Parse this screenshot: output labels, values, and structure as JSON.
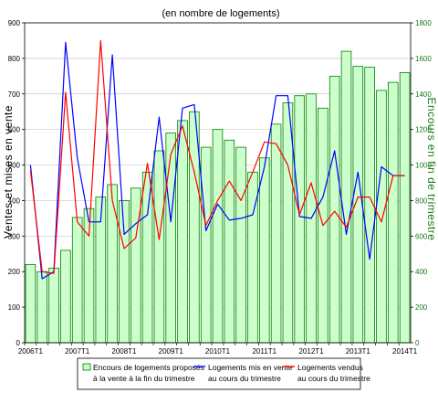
{
  "chart_data": {
    "type": "bar+line",
    "title": "(en nombre de logements)",
    "ylabel_left": "Ventes et mises en vente",
    "ylabel_right": "Encours en fin de trimestre",
    "ylim_left": [
      0,
      900
    ],
    "ylim_right": [
      0,
      1800
    ],
    "yticks_left": [
      0,
      100,
      200,
      300,
      400,
      500,
      600,
      700,
      800,
      900
    ],
    "yticks_right": [
      0,
      200,
      400,
      600,
      800,
      1000,
      1200,
      1400,
      1600,
      1800
    ],
    "x_tick_labels": [
      "2006T1",
      "2007T1",
      "2008T1",
      "2009T1",
      "2010T1",
      "2011T1",
      "2012T1",
      "2013T1",
      "2014T1"
    ],
    "categories": [
      "2006T1",
      "2006T2",
      "2006T3",
      "2006T4",
      "2007T1",
      "2007T2",
      "2007T3",
      "2007T4",
      "2008T1",
      "2008T2",
      "2008T3",
      "2008T4",
      "2009T1",
      "2009T2",
      "2009T3",
      "2009T4",
      "2010T1",
      "2010T2",
      "2010T3",
      "2010T4",
      "2011T1",
      "2011T2",
      "2011T3",
      "2011T4",
      "2012T1",
      "2012T2",
      "2012T3",
      "2012T4",
      "2013T1",
      "2013T2",
      "2013T3",
      "2013T4",
      "2014T1"
    ],
    "grid": true,
    "legend_position": "bottom",
    "series": [
      {
        "name": "Encours de logements proposés à la vente à la fin du trimestre",
        "kind": "bar",
        "axis": "right",
        "color": "#ccffcc",
        "values": [
          440,
          400,
          420,
          520,
          705,
          755,
          820,
          890,
          800,
          870,
          960,
          1080,
          1180,
          1250,
          1300,
          1100,
          1200,
          1140,
          1100,
          960,
          1040,
          1230,
          1350,
          1390,
          1400,
          1320,
          1500,
          1640,
          1555,
          1550,
          1420,
          1465,
          1520
        ]
      },
      {
        "name": "Logements mis en vente au cours du trimestre",
        "kind": "line",
        "axis": "left",
        "color": "#0000ff",
        "values": [
          500,
          180,
          200,
          845,
          520,
          340,
          340,
          810,
          305,
          335,
          360,
          635,
          340,
          660,
          670,
          315,
          390,
          345,
          350,
          360,
          495,
          695,
          695,
          355,
          350,
          410,
          540,
          305,
          480,
          235,
          495,
          470,
          470
        ]
      },
      {
        "name": "Logements vendus au cours du trimestre",
        "kind": "line",
        "axis": "left",
        "color": "#ff0000",
        "values": [
          485,
          200,
          195,
          705,
          340,
          300,
          850,
          400,
          265,
          295,
          505,
          290,
          530,
          610,
          480,
          330,
          400,
          455,
          400,
          480,
          565,
          560,
          500,
          360,
          450,
          330,
          370,
          325,
          410,
          410,
          340,
          470,
          470
        ]
      }
    ],
    "legend": {
      "item1_line1": "Encours de logements proposés",
      "item1_line2": "à la vente à la  fin du  trimestre",
      "item2_line1": "Logements mis en vente",
      "item2_line2": "au cours du trimestre",
      "item3_line1": "Logements vendus",
      "item3_line2": "au cours du trimestre"
    }
  }
}
